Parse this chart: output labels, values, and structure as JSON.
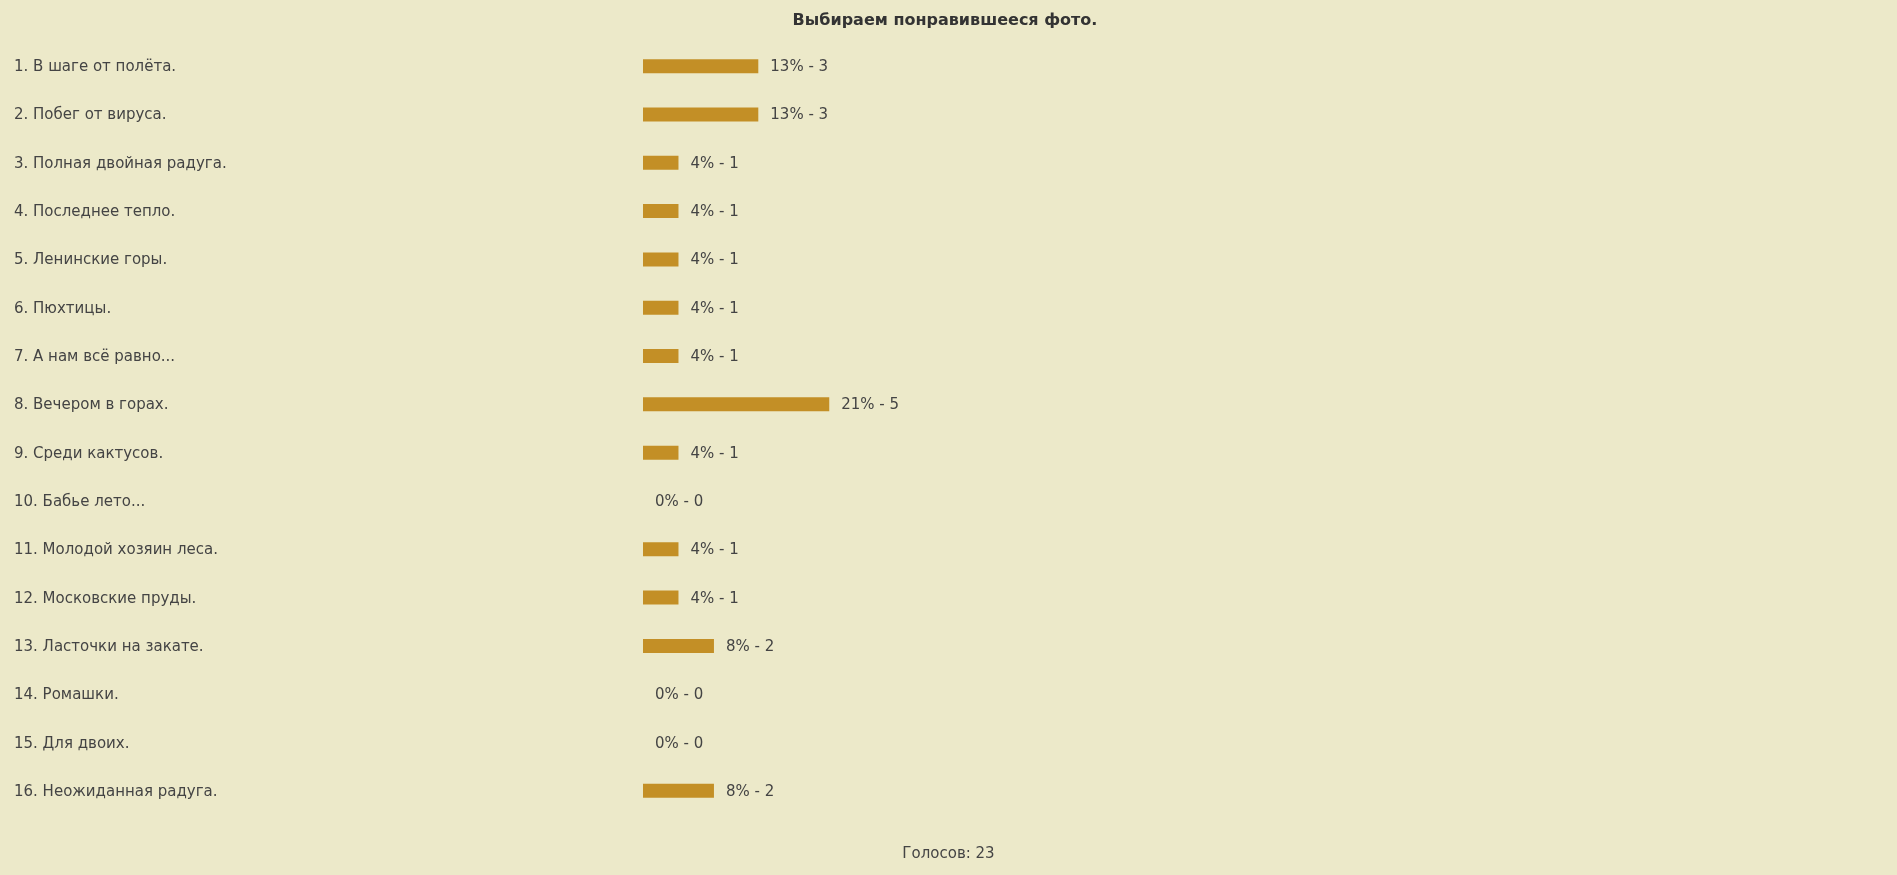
{
  "chart_data": {
    "type": "bar",
    "orientation": "horizontal",
    "title": "Выбираем понравившееся фото.",
    "categories": [
      "1. В шаге от полёта.",
      "2. Побег от вируса.",
      "3. Полная двойная радуга.",
      "4. Последнее тепло.",
      "5. Ленинские горы.",
      "6. Пюхтицы.",
      "7. А нам всё равно...",
      "8. Вечером в горах.",
      "9. Среди кактусов.",
      "10. Бабье лето...",
      "11. Молодой хозяин леса.",
      "12. Московские пруды.",
      "13. Ласточки на закате.",
      "14. Ромашки.",
      "15. Для двоих.",
      "16. Неожиданная радуга."
    ],
    "values": [
      13,
      13,
      4,
      4,
      4,
      4,
      4,
      21,
      4,
      0,
      4,
      4,
      8,
      0,
      0,
      8
    ],
    "value_labels": [
      "13% - 3",
      "13% - 3",
      "4% - 1",
      "4% - 1",
      "4% - 1",
      "4% - 1",
      "4% - 1",
      "21% - 5",
      "4% - 1",
      "0% - 0",
      "4% - 1",
      "4% - 1",
      "8% - 2",
      "0% - 0",
      "0% - 0",
      "8% - 2"
    ],
    "color": "#c38f26",
    "annotations": [
      "Голосов: 23"
    ]
  }
}
